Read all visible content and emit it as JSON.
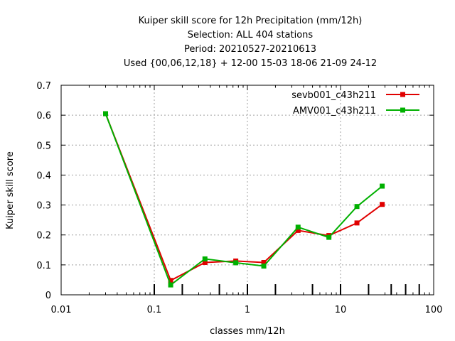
{
  "chart_data": {
    "type": "line",
    "title_lines": [
      "Kuiper skill score  for 12h Precipitation (mm/12h)",
      "Selection: ALL    404 stations",
      "Period: 20210527-20210613",
      "Used {00,06,12,18} + 12-00 15-03 18-06 21-09 24-12"
    ],
    "xlabel": "classes mm/12h",
    "ylabel": "Kuiper skill score",
    "x_scale": "log",
    "xlim": [
      0.01,
      100
    ],
    "ylim": [
      0,
      0.7
    ],
    "x_ticks": [
      0.01,
      0.1,
      1,
      10,
      100
    ],
    "x_tick_labels": [
      "0.01",
      "0.1",
      "1",
      "10",
      "100"
    ],
    "y_ticks": [
      0,
      0.1,
      0.2,
      0.3,
      0.4,
      0.5,
      0.6,
      0.7
    ],
    "y_tick_labels": [
      "0",
      "0.1",
      "0.2",
      "0.3",
      "0.4",
      "0.5",
      "0.6",
      "0.7"
    ],
    "grid": true,
    "legend_position": "top-right",
    "class_boundaries": [
      0.1,
      0.2,
      0.5,
      1,
      2,
      5,
      10,
      20,
      35,
      50,
      70
    ],
    "series": [
      {
        "name": "sevb001_c43h211",
        "color": "#e00000",
        "marker": "square",
        "x": [
          0.03,
          0.15,
          0.35,
          0.75,
          1.5,
          3.5,
          7.5,
          15,
          28
        ],
        "y": [
          0.605,
          0.048,
          0.108,
          0.113,
          0.108,
          0.215,
          0.198,
          0.24,
          0.302
        ]
      },
      {
        "name": "AMV001_c43h211",
        "color": "#00b000",
        "marker": "square",
        "x": [
          0.03,
          0.15,
          0.35,
          0.75,
          1.5,
          3.5,
          7.5,
          15,
          28
        ],
        "y": [
          0.605,
          0.033,
          0.12,
          0.107,
          0.096,
          0.226,
          0.192,
          0.295,
          0.363
        ]
      }
    ]
  }
}
